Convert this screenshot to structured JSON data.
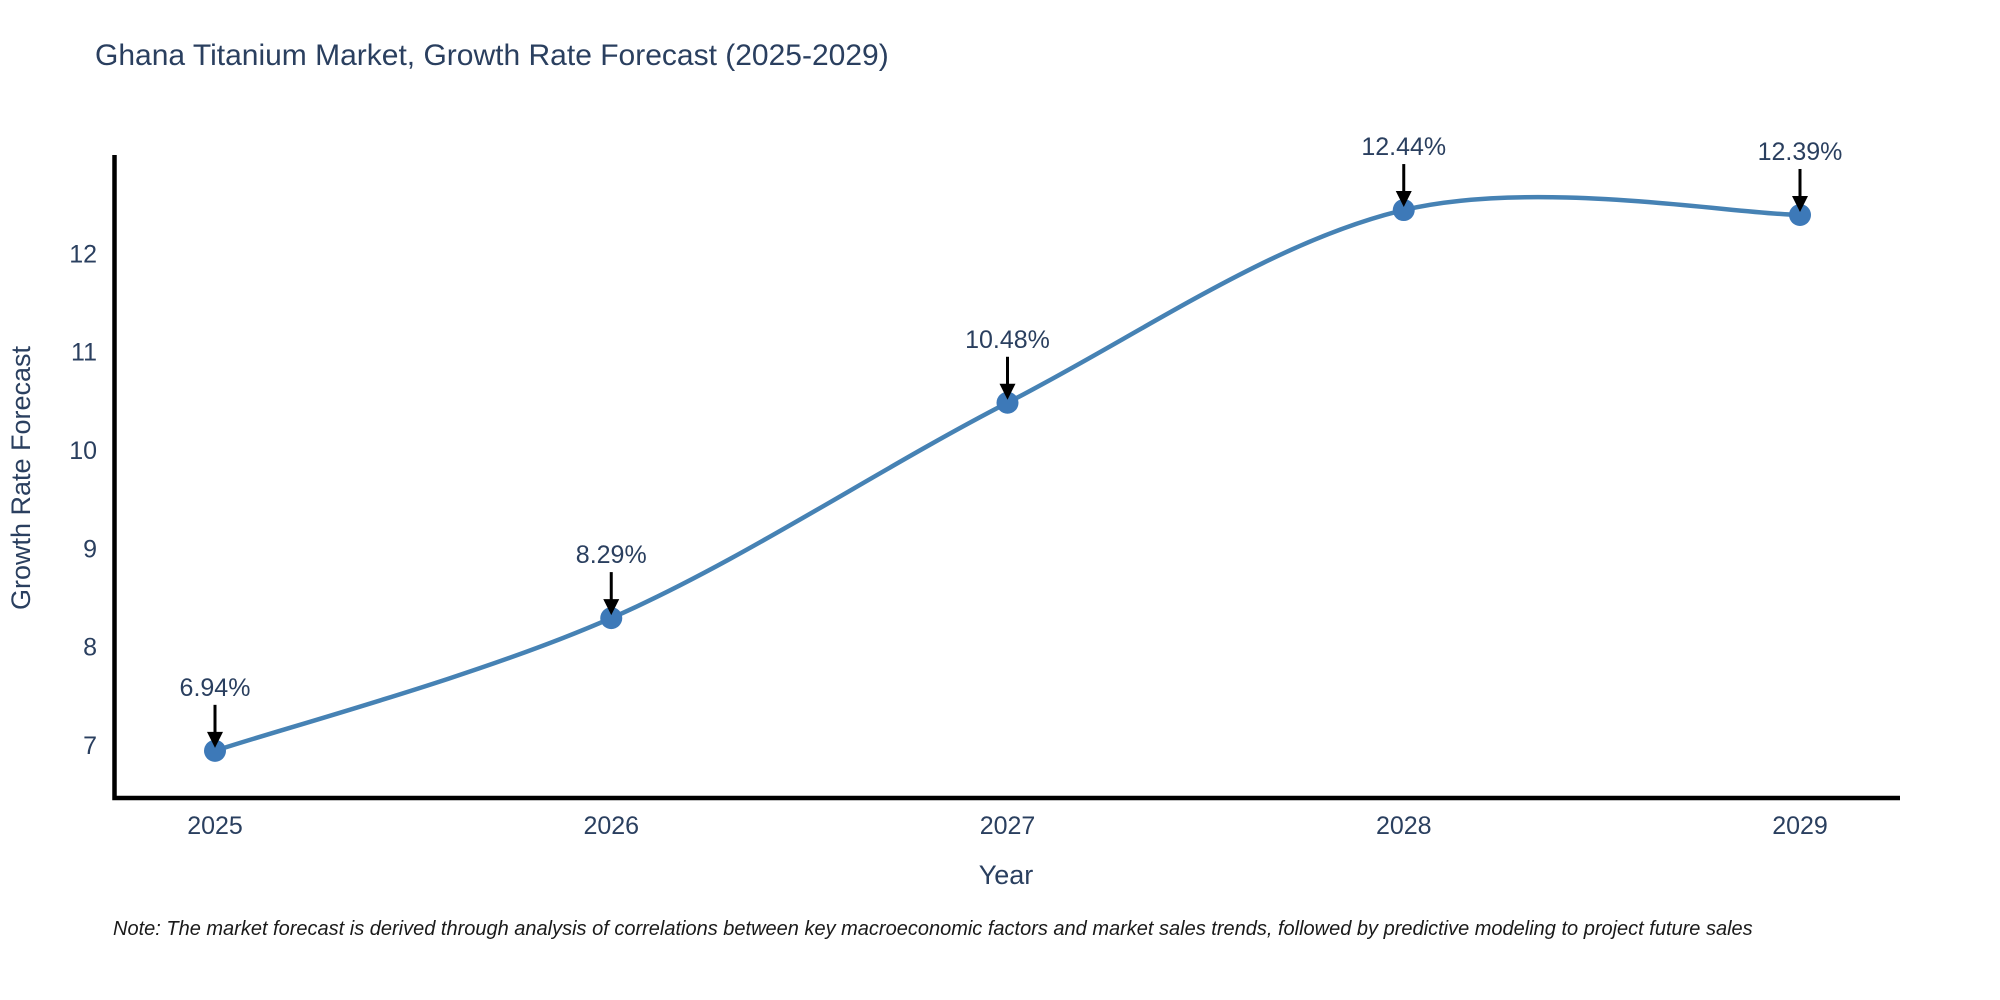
{
  "page": {
    "title": "Ghana Titanium Market, Growth Rate Forecast (2025-2029)",
    "footnote": "Note: The market forecast is derived through analysis of correlations between key macroeconomic factors and market sales trends, followed by predictive modeling to project future sales"
  },
  "chart_data": {
    "type": "line",
    "title": "Ghana Titanium Market, Growth Rate Forecast (2025-2029)",
    "x": [
      "2025",
      "2026",
      "2027",
      "2028",
      "2029"
    ],
    "series": [
      {
        "name": "Growth Rate Forecast",
        "values": [
          6.94,
          8.29,
          10.48,
          12.44,
          12.39
        ]
      }
    ],
    "point_labels": [
      "6.94%",
      "8.29%",
      "10.48%",
      "12.44%",
      "12.39%"
    ],
    "xlabel": "Year",
    "ylabel": "Growth Rate Forecast",
    "yticks": [
      7,
      8,
      9,
      10,
      11,
      12
    ],
    "ylim": [
      6.44,
      13.0
    ],
    "line_shape": "spline",
    "grid": false,
    "legend_position": "none",
    "colors": {
      "line": "#4682b4",
      "marker": "#3d79b8",
      "axis_line": "#000000",
      "tick_text": "#2a3f5f",
      "title_text": "#2a3f5f",
      "annotation_text": "#2a3f5f",
      "annotation_arrow": "#000000",
      "note_text": "#1a1a1a",
      "background": "#ffffff"
    }
  }
}
